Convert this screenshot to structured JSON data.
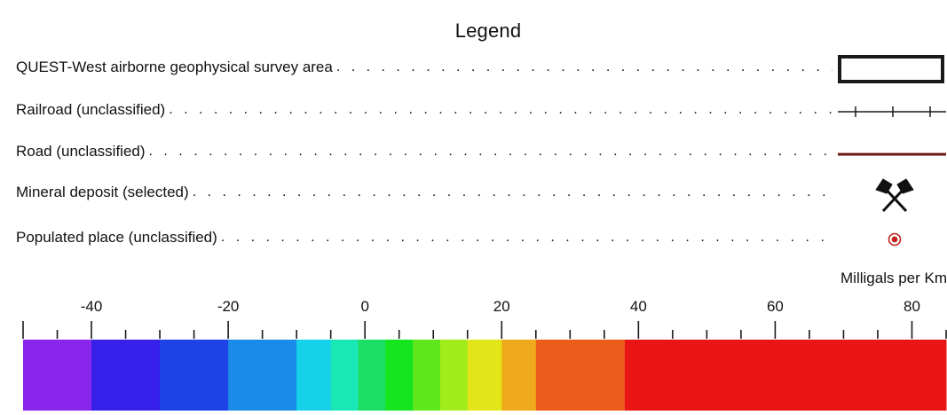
{
  "legend": {
    "title": "Legend",
    "items": [
      {
        "label": "QUEST-West airborne geophysical survey area",
        "symbol": "survey-area-box"
      },
      {
        "label": "Railroad (unclassified)",
        "symbol": "railroad-line"
      },
      {
        "label": "Road (unclassified)",
        "symbol": "road-line"
      },
      {
        "label": "Mineral deposit (selected)",
        "symbol": "crossed-hammers-icon"
      },
      {
        "label": "Populated place (unclassified)",
        "symbol": "populated-place-icon"
      }
    ],
    "colors": {
      "survey_area": "#1a1a1a",
      "railroad": "#1a1a1a",
      "road": "#6b1414",
      "mineral": "#111111",
      "populated_place": "#c0241c"
    }
  },
  "color_scale": {
    "unit": "Milligals per Km",
    "min": -50,
    "max": 85,
    "ticks": [
      -40,
      -20,
      0,
      20,
      40,
      60,
      80
    ],
    "minor_step": 5,
    "bands": [
      {
        "from": -50,
        "to": -40,
        "color": "#8a26ec"
      },
      {
        "from": -40,
        "to": -30,
        "color": "#3620ea"
      },
      {
        "from": -30,
        "to": -20,
        "color": "#1d43e6"
      },
      {
        "from": -20,
        "to": -10,
        "color": "#1a8be8"
      },
      {
        "from": -10,
        "to": -5,
        "color": "#15d2ea"
      },
      {
        "from": -5,
        "to": -1,
        "color": "#19e8b6"
      },
      {
        "from": -1,
        "to": 3,
        "color": "#1adf64"
      },
      {
        "from": 3,
        "to": 7,
        "color": "#14e51e"
      },
      {
        "from": 7,
        "to": 11,
        "color": "#5ee81c"
      },
      {
        "from": 11,
        "to": 15,
        "color": "#a2ec1c"
      },
      {
        "from": 15,
        "to": 20,
        "color": "#e2e618"
      },
      {
        "from": 20,
        "to": 25,
        "color": "#eeaa1a"
      },
      {
        "from": 25,
        "to": 38,
        "color": "#ec5c1a"
      },
      {
        "from": 38,
        "to": 85,
        "color": "#ea1616"
      }
    ]
  }
}
